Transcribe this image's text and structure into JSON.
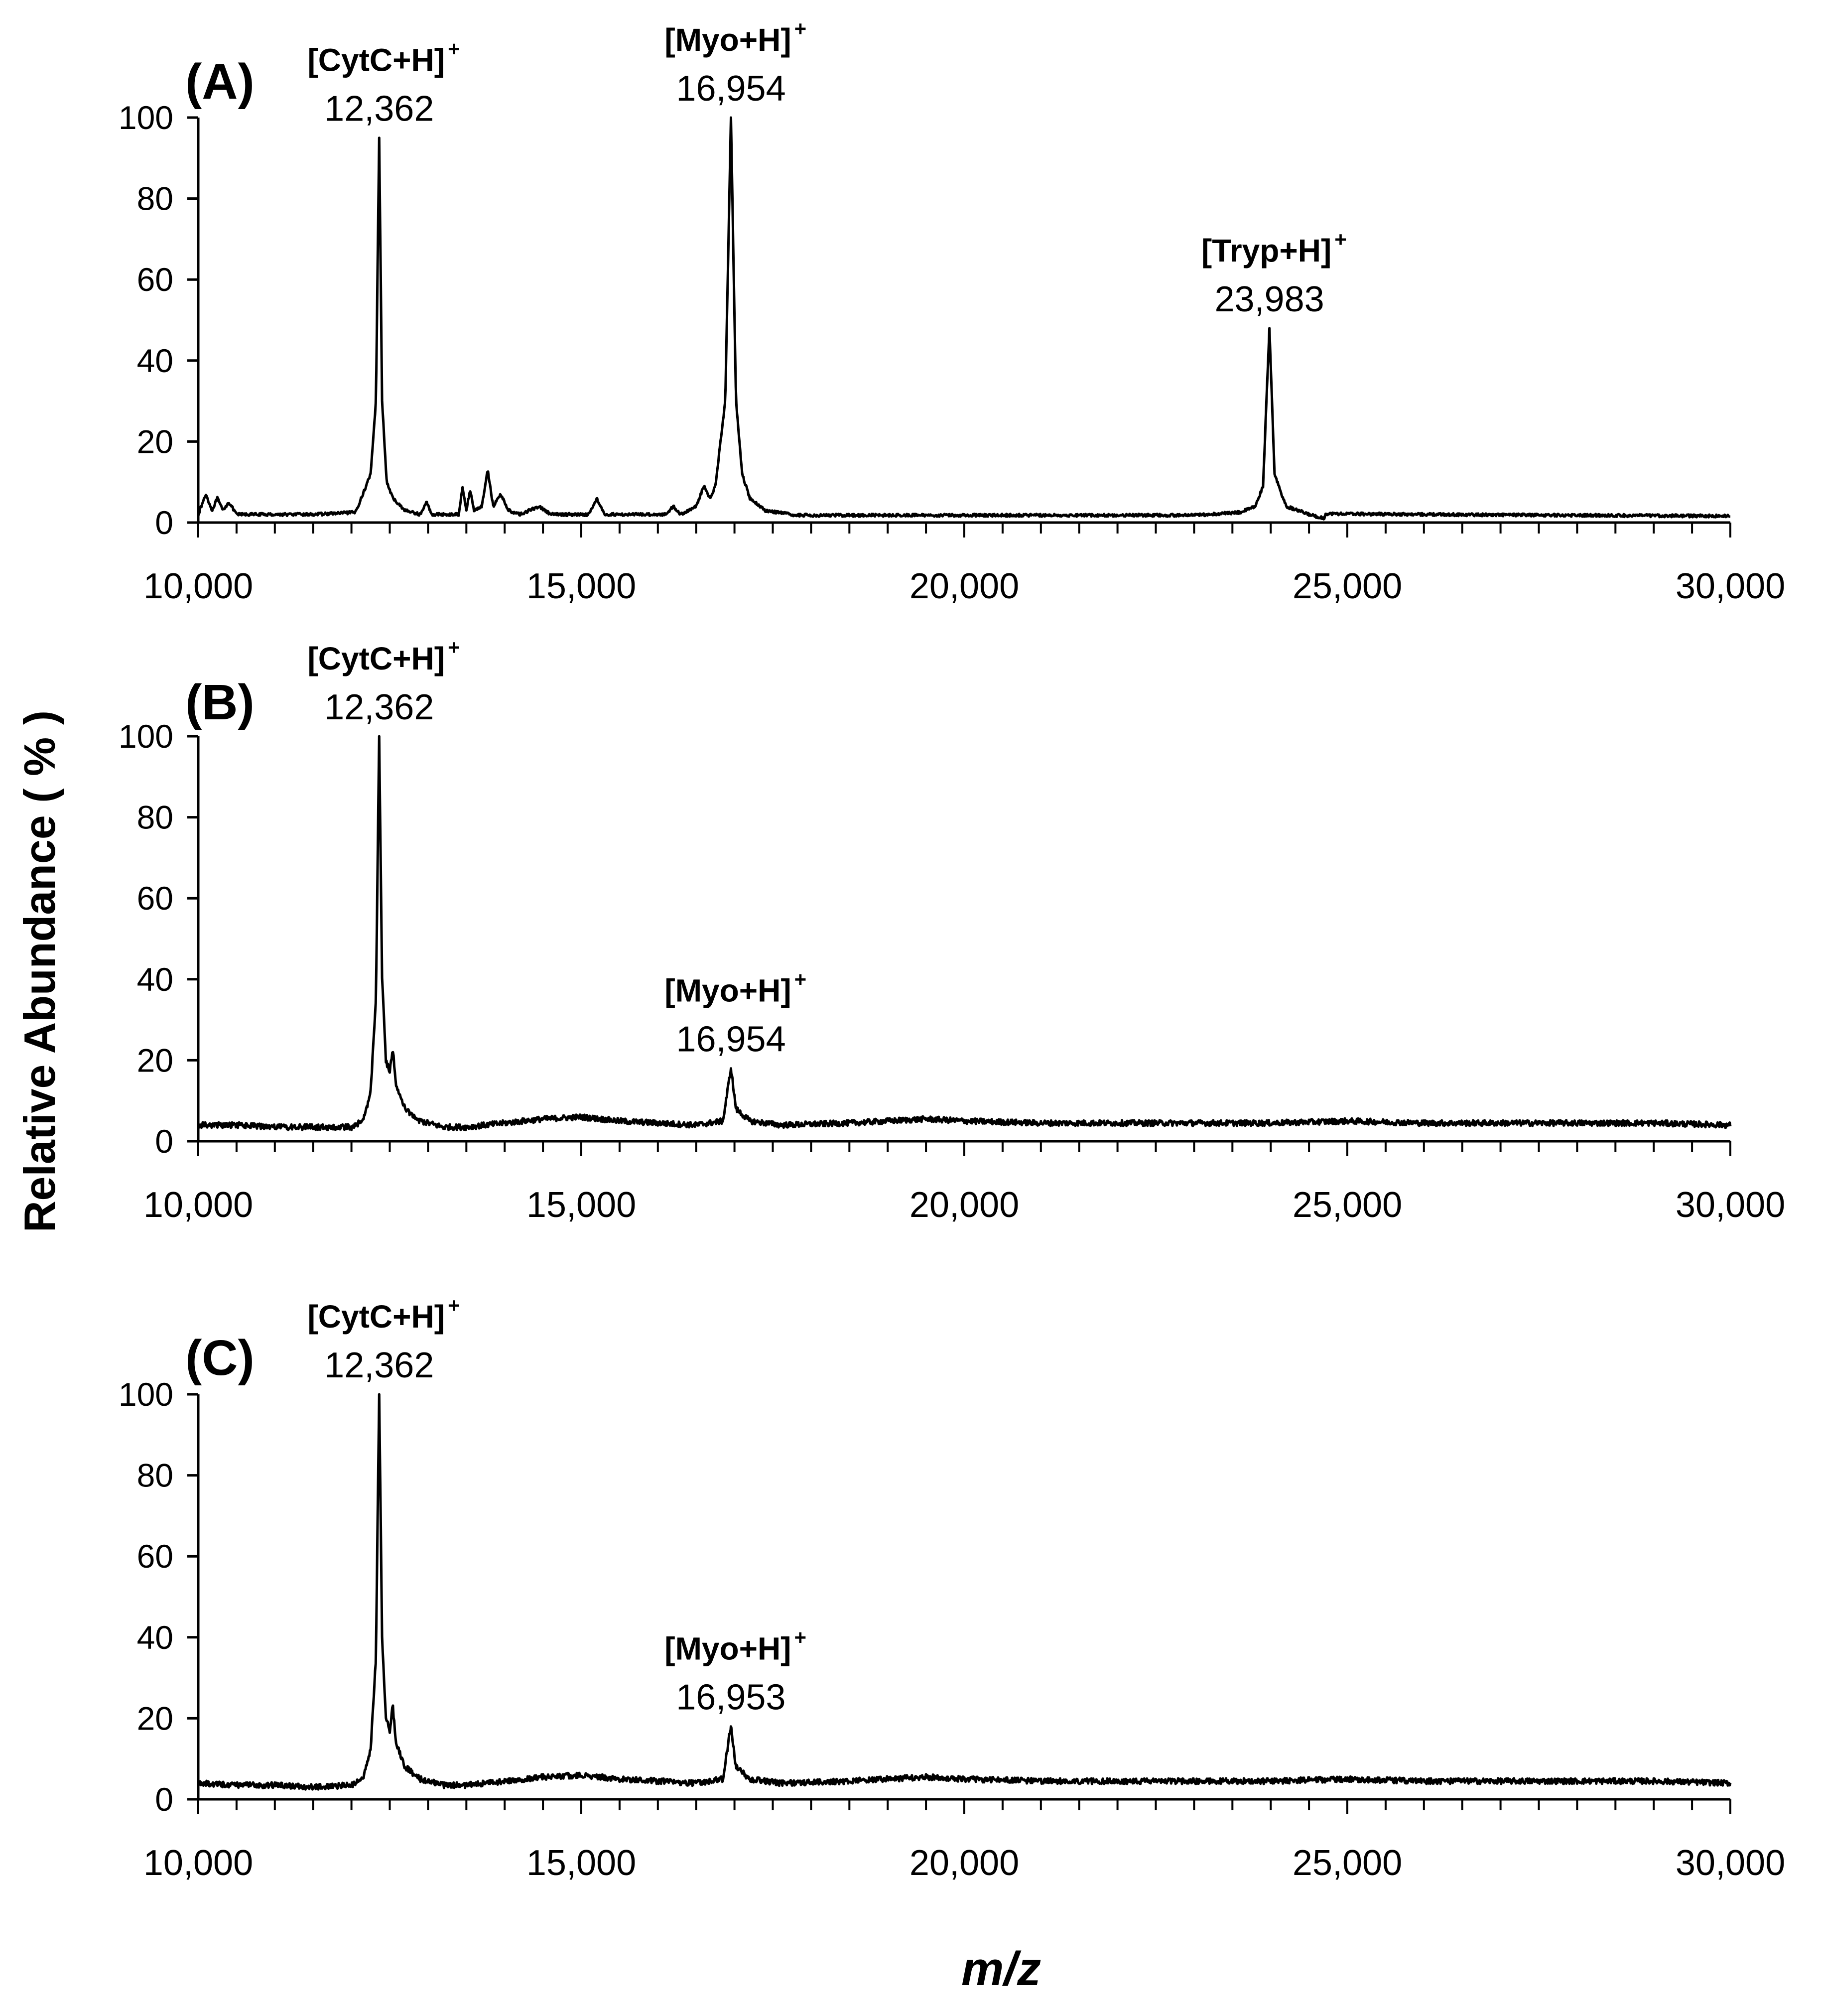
{
  "figure": {
    "ylabel": "Relative Abundance ( % )",
    "xlabel": "m/z",
    "ink_color": "#000000",
    "background": "#ffffff"
  },
  "chart_data": [
    {
      "type": "line",
      "panel_label": "(A)",
      "xlim": [
        10000,
        30000
      ],
      "ylim": [
        0,
        100
      ],
      "x_ticks": [
        "10,000",
        "15,000",
        "20,000",
        "25,000",
        "30,000"
      ],
      "y_ticks": [
        "0",
        "20",
        "40",
        "60",
        "80",
        "100"
      ],
      "grid": false,
      "legend": "none",
      "baseline": 2,
      "peaks": [
        {
          "ion": "[CytC+H]",
          "charge": "+",
          "mz_label": "12,362",
          "x": 12362,
          "y": 95
        },
        {
          "ion": "[Myo+H]",
          "charge": "+",
          "mz_label": "16,954",
          "x": 16954,
          "y": 100
        },
        {
          "ion": "[Tryp+H]",
          "charge": "+",
          "mz_label": "23,983",
          "x": 23983,
          "y": 48
        }
      ],
      "series": [
        {
          "values": [
            [
              10000,
              2
            ],
            [
              10100,
              7
            ],
            [
              10180,
              3
            ],
            [
              10250,
              6
            ],
            [
              10320,
              3
            ],
            [
              10400,
              5
            ],
            [
              10500,
              2
            ],
            [
              11000,
              2
            ],
            [
              11500,
              2
            ],
            [
              12050,
              2.5
            ],
            [
              12150,
              7
            ],
            [
              12250,
              12
            ],
            [
              12320,
              30
            ],
            [
              12362,
              95
            ],
            [
              12400,
              30
            ],
            [
              12460,
              10
            ],
            [
              12540,
              6
            ],
            [
              12700,
              3
            ],
            [
              12900,
              2
            ],
            [
              12980,
              5
            ],
            [
              13050,
              2
            ],
            [
              13400,
              2
            ],
            [
              13450,
              9
            ],
            [
              13500,
              3
            ],
            [
              13550,
              8
            ],
            [
              13600,
              3
            ],
            [
              13700,
              4
            ],
            [
              13780,
              13
            ],
            [
              13850,
              4
            ],
            [
              13950,
              7
            ],
            [
              14050,
              3
            ],
            [
              14200,
              2
            ],
            [
              14450,
              4
            ],
            [
              14600,
              2
            ],
            [
              15100,
              2
            ],
            [
              15200,
              6
            ],
            [
              15300,
              2
            ],
            [
              16100,
              2
            ],
            [
              16200,
              4
            ],
            [
              16300,
              2
            ],
            [
              16500,
              4
            ],
            [
              16600,
              9
            ],
            [
              16680,
              6
            ],
            [
              16750,
              9
            ],
            [
              16880,
              30
            ],
            [
              16954,
              100
            ],
            [
              17020,
              30
            ],
            [
              17100,
              12
            ],
            [
              17200,
              6
            ],
            [
              17400,
              3
            ],
            [
              17800,
              1.8
            ],
            [
              19000,
              1.8
            ],
            [
              21000,
              1.8
            ],
            [
              23000,
              1.8
            ],
            [
              23600,
              2.5
            ],
            [
              23800,
              4
            ],
            [
              23900,
              9
            ],
            [
              23983,
              48
            ],
            [
              24050,
              12
            ],
            [
              24200,
              4
            ],
            [
              24500,
              2
            ],
            [
              24700,
              1
            ],
            [
              24720,
              2.2
            ],
            [
              26000,
              2
            ],
            [
              28000,
              1.8
            ],
            [
              30000,
              1.6
            ]
          ]
        }
      ]
    },
    {
      "type": "line",
      "panel_label": "(B)",
      "xlim": [
        10000,
        30000
      ],
      "ylim": [
        0,
        100
      ],
      "x_ticks": [
        "10,000",
        "15,000",
        "20,000",
        "25,000",
        "30,000"
      ],
      "y_ticks": [
        "0",
        "20",
        "40",
        "60",
        "80",
        "100"
      ],
      "grid": false,
      "legend": "none",
      "baseline": 4,
      "peaks": [
        {
          "ion": "[CytC+H]",
          "charge": "+",
          "mz_label": "12,362",
          "x": 12362,
          "y": 100
        },
        {
          "ion": "[Myo+H]",
          "charge": "+",
          "mz_label": "16,954",
          "x": 16954,
          "y": 18
        }
      ],
      "series": [
        {
          "values": [
            [
              10000,
              4
            ],
            [
              10500,
              4
            ],
            [
              11000,
              3.5
            ],
            [
              11500,
              3.5
            ],
            [
              12000,
              3.5
            ],
            [
              12150,
              5
            ],
            [
              12250,
              12
            ],
            [
              12320,
              35
            ],
            [
              12362,
              100
            ],
            [
              12400,
              40
            ],
            [
              12450,
              20
            ],
            [
              12500,
              17
            ],
            [
              12540,
              23
            ],
            [
              12580,
              14
            ],
            [
              12700,
              8
            ],
            [
              12900,
              5
            ],
            [
              13200,
              3.5
            ],
            [
              13500,
              3.5
            ],
            [
              14000,
              4.5
            ],
            [
              14500,
              5.5
            ],
            [
              15000,
              6
            ],
            [
              15500,
              5
            ],
            [
              16000,
              4.5
            ],
            [
              16500,
              4
            ],
            [
              16850,
              5
            ],
            [
              16954,
              18
            ],
            [
              17020,
              8
            ],
            [
              17200,
              5
            ],
            [
              17600,
              4
            ],
            [
              18500,
              4.5
            ],
            [
              19000,
              5
            ],
            [
              19500,
              5.5
            ],
            [
              20000,
              5
            ],
            [
              21000,
              4.5
            ],
            [
              22000,
              4.5
            ],
            [
              23000,
              4.5
            ],
            [
              24000,
              4.5
            ],
            [
              25000,
              5
            ],
            [
              26000,
              4.5
            ],
            [
              27000,
              4.5
            ],
            [
              28000,
              4.5
            ],
            [
              29000,
              4.5
            ],
            [
              30000,
              4
            ]
          ]
        }
      ]
    },
    {
      "type": "line",
      "panel_label": "(C)",
      "xlim": [
        10000,
        30000
      ],
      "ylim": [
        0,
        100
      ],
      "x_ticks": [
        "10,000",
        "15,000",
        "20,000",
        "25,000",
        "30,000"
      ],
      "y_ticks": [
        "0",
        "20",
        "40",
        "60",
        "80",
        "100"
      ],
      "grid": false,
      "legend": "none",
      "baseline": 4,
      "peaks": [
        {
          "ion": "[CytC+H]",
          "charge": "+",
          "mz_label": "12,362",
          "x": 12362,
          "y": 100
        },
        {
          "ion": "[Myo+H]",
          "charge": "+",
          "mz_label": "16,953",
          "x": 16953,
          "y": 18
        }
      ],
      "series": [
        {
          "values": [
            [
              10000,
              4
            ],
            [
              10500,
              3.5
            ],
            [
              11000,
              3.5
            ],
            [
              11500,
              3
            ],
            [
              12000,
              3.5
            ],
            [
              12150,
              5
            ],
            [
              12250,
              12
            ],
            [
              12320,
              35
            ],
            [
              12362,
              100
            ],
            [
              12400,
              40
            ],
            [
              12450,
              20
            ],
            [
              12500,
              17
            ],
            [
              12540,
              23
            ],
            [
              12580,
              14
            ],
            [
              12700,
              8
            ],
            [
              12900,
              5
            ],
            [
              13200,
              3.5
            ],
            [
              13500,
              3.5
            ],
            [
              14000,
              4.5
            ],
            [
              14500,
              5.5
            ],
            [
              15000,
              6
            ],
            [
              15500,
              5
            ],
            [
              16000,
              4.5
            ],
            [
              16500,
              4
            ],
            [
              16850,
              5
            ],
            [
              16953,
              18
            ],
            [
              17020,
              8
            ],
            [
              17200,
              5
            ],
            [
              17600,
              4
            ],
            [
              18500,
              4.5
            ],
            [
              19000,
              5
            ],
            [
              19500,
              5.5
            ],
            [
              20000,
              5
            ],
            [
              21000,
              4.5
            ],
            [
              22000,
              4.5
            ],
            [
              23000,
              4.5
            ],
            [
              24000,
              4.5
            ],
            [
              25000,
              5
            ],
            [
              26000,
              4.5
            ],
            [
              27000,
              4.5
            ],
            [
              28000,
              4.5
            ],
            [
              29000,
              4.5
            ],
            [
              30000,
              4
            ]
          ]
        }
      ]
    }
  ]
}
